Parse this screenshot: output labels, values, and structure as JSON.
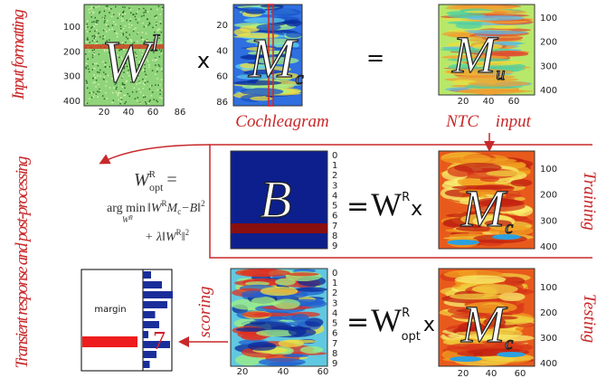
{
  "left_labels": {
    "input_formatting": "Input formatting",
    "transient": "Transient response and post-processing"
  },
  "row1": {
    "wi": {
      "symbol": "W",
      "sup": "I",
      "y_ticks": [
        100,
        200,
        300,
        400
      ],
      "x_ticks": [
        20,
        40,
        60,
        86
      ]
    },
    "times": "x",
    "mc": {
      "symbol": "M",
      "sub": "c",
      "y_ticks": [
        20,
        40,
        60,
        86
      ],
      "caption": "Cochleagram"
    },
    "equals": "=",
    "mu": {
      "symbol": "M",
      "sub": "u",
      "y_ticks": [
        100,
        200,
        300,
        400
      ],
      "x_ticks": [
        20,
        40,
        60
      ],
      "caption": "NTC input"
    }
  },
  "formula": {
    "lhs": "W",
    "lhs_sup": "R",
    "lhs_sub": "opt",
    "eq": "=",
    "argmin": "arg min",
    "argmin_w": "W",
    "argmin_sup": "R",
    "t1_a": "‖W",
    "t1_sup": "R",
    "t1_m": "M",
    "t1_sub": "c",
    "t1_b": "−B‖",
    "t1_pow": "2",
    "t2_a": "+ λ‖W",
    "t2_sup": "R",
    "t2_b": "‖",
    "t2_pow": "2"
  },
  "training": {
    "b_symbol": "B",
    "b_ticks": [
      0,
      1,
      2,
      3,
      4,
      5,
      6,
      7,
      8,
      9
    ],
    "eq": "=",
    "w": "W",
    "w_sup": "R",
    "times": "x",
    "m": "M",
    "m_sub": "c",
    "ticks": [
      100,
      200,
      300,
      400
    ],
    "label": "Training"
  },
  "testing": {
    "score_ticks": [
      0,
      1,
      2,
      3,
      4,
      5,
      6,
      7,
      8,
      9
    ],
    "score_x_ticks": [
      20,
      40,
      60
    ],
    "scoring": "scoring",
    "eq": "=",
    "w": "W",
    "w_sup": "R",
    "w_sub": "opt",
    "times": "x",
    "m": "M",
    "m_sub": "c",
    "ticks": [
      100,
      200,
      300,
      400
    ],
    "x_ticks": [
      20,
      40,
      60
    ],
    "label": "Testing"
  },
  "result": {
    "margin": "margin",
    "digit": "7"
  }
}
